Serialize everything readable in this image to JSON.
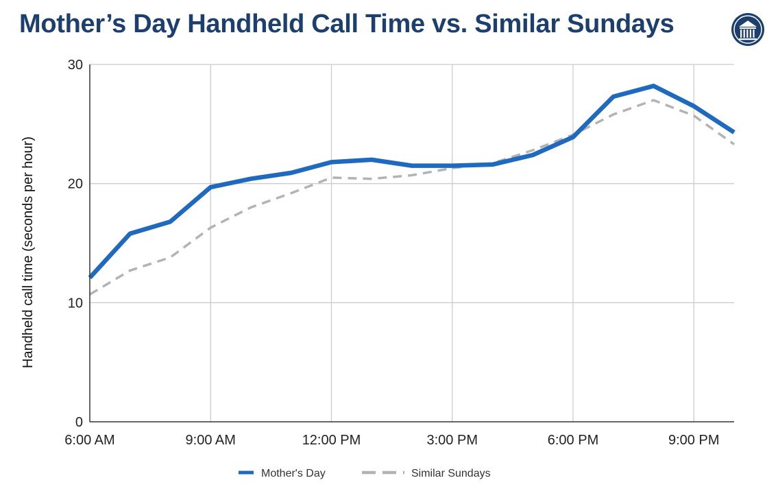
{
  "title": "Mother’s Day Handheld Call Time vs. Similar Sundays",
  "logo_icon": "columned-building-seal-icon",
  "colors": {
    "title": "#1c3f6e",
    "mothers_day": "#1f6abf",
    "similar_sundays": "#b3b3b3",
    "grid": "#cccccc",
    "axis": "#333333"
  },
  "chart_data": {
    "type": "line",
    "title": "Mother’s Day Handheld Call Time vs. Similar Sundays",
    "xlabel": "",
    "ylabel": "Handheld call time (seconds per hour)",
    "x": [
      "6:00 AM",
      "7:00 AM",
      "8:00 AM",
      "9:00 AM",
      "10:00 AM",
      "11:00 AM",
      "12:00 PM",
      "1:00 PM",
      "2:00 PM",
      "3:00 PM",
      "4:00 PM",
      "5:00 PM",
      "6:00 PM",
      "7:00 PM",
      "8:00 PM",
      "9:00 PM",
      "10:00 PM"
    ],
    "x_ticks": [
      "6:00 AM",
      "9:00 AM",
      "12:00 PM",
      "3:00 PM",
      "6:00 PM",
      "9:00 PM"
    ],
    "y_ticks": [
      "0",
      "10",
      "20",
      "30"
    ],
    "ylim": [
      0,
      30
    ],
    "grid": true,
    "legend_position": "bottom",
    "series": [
      {
        "name": "Mother's Day",
        "style": "solid",
        "values": [
          12.1,
          15.8,
          16.8,
          19.7,
          20.4,
          20.9,
          21.8,
          22.0,
          21.5,
          21.5,
          21.6,
          22.4,
          23.9,
          27.3,
          28.2,
          26.5,
          24.3
        ]
      },
      {
        "name": "Similar Sundays",
        "style": "dashed",
        "values": [
          10.7,
          12.7,
          13.8,
          16.3,
          18.0,
          19.2,
          20.5,
          20.4,
          20.7,
          21.3,
          21.7,
          22.8,
          24.1,
          25.8,
          27.0,
          25.7,
          23.3
        ]
      }
    ]
  }
}
